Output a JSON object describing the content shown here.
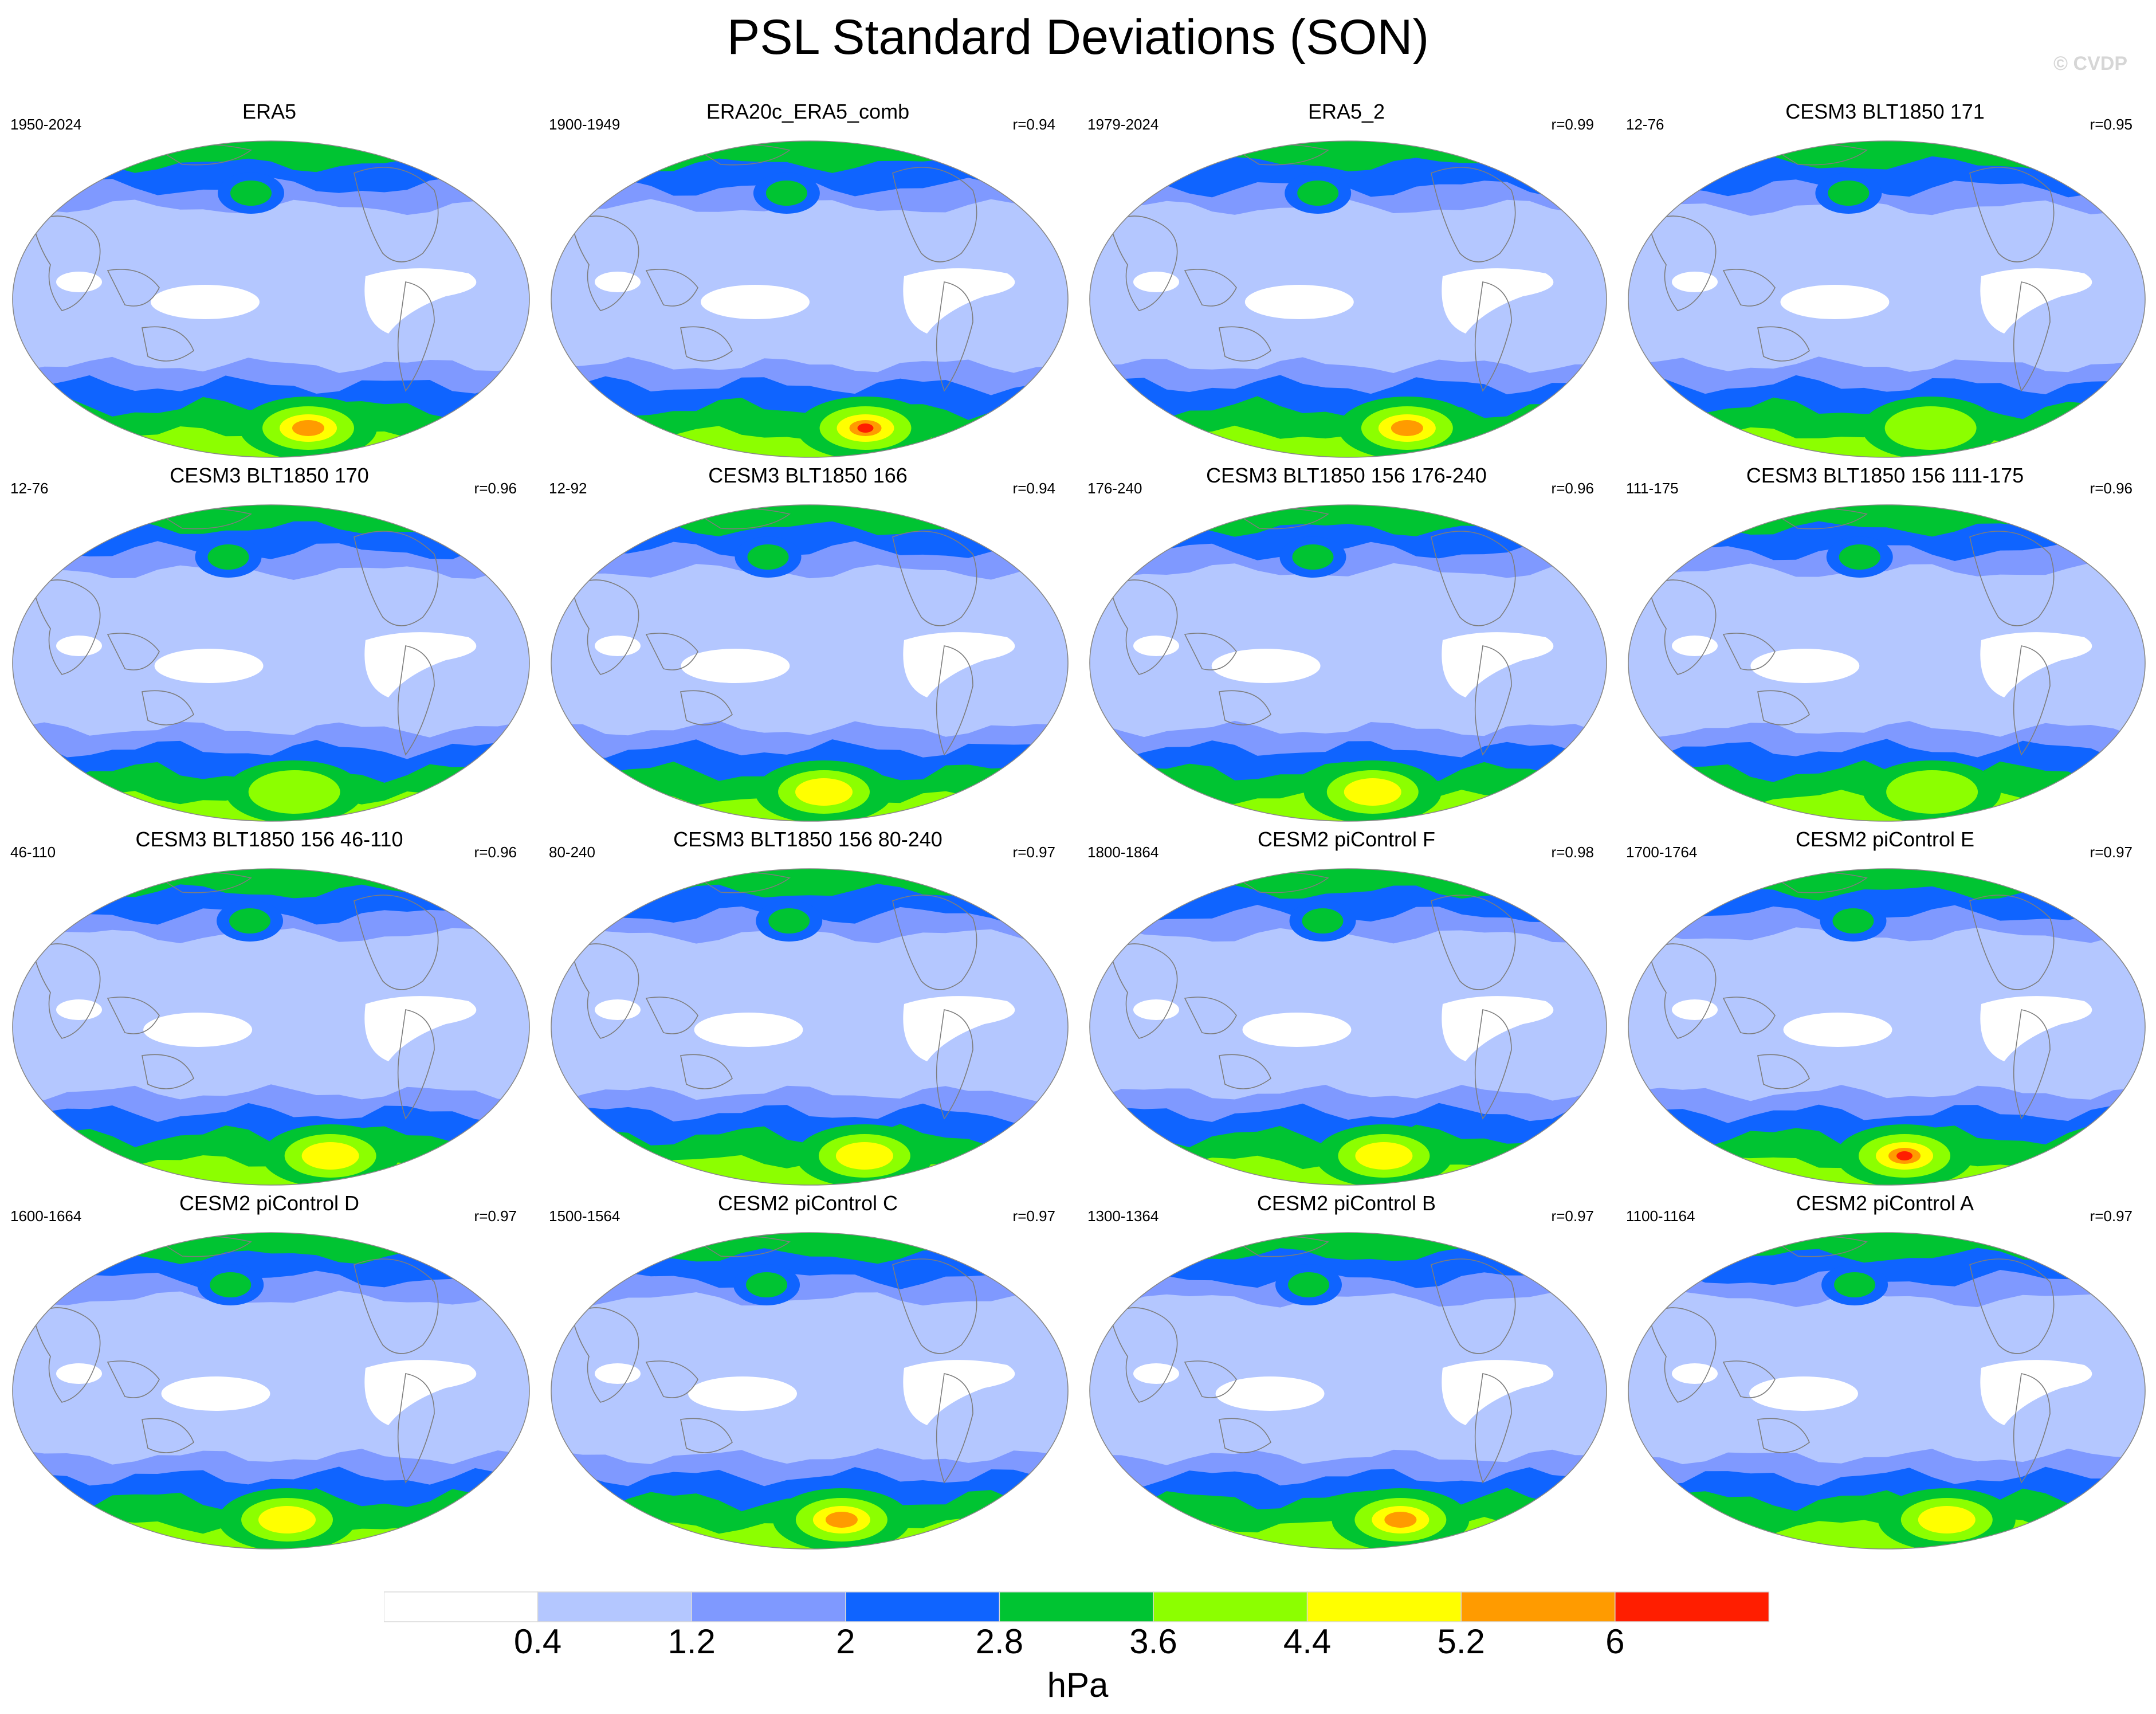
{
  "title": "PSL Standard Deviations (SON)",
  "watermark": "© CVDP",
  "colorbar": {
    "units": "hPa",
    "levels": [
      "0.4",
      "1.2",
      "2",
      "2.8",
      "3.6",
      "4.4",
      "5.2",
      "6"
    ],
    "colors": [
      "#ffffff",
      "#b4c7ff",
      "#7f99ff",
      "#0f64ff",
      "#00c432",
      "#8cff00",
      "#ffff00",
      "#ff9b00",
      "#ff1e00"
    ]
  },
  "panels": [
    {
      "title": "ERA5",
      "years": "1950-2024",
      "r": "",
      "peak": "orange"
    },
    {
      "title": "ERA20c_ERA5_comb",
      "years": "1900-1949",
      "r": "r=0.94",
      "peak": "red"
    },
    {
      "title": "ERA5_2",
      "years": "1979-2024",
      "r": "r=0.99",
      "peak": "orange"
    },
    {
      "title": "CESM3 BLT1850 171",
      "years": "12-76",
      "r": "r=0.95",
      "peak": "lime"
    },
    {
      "title": "CESM3 BLT1850 170",
      "years": "12-76",
      "r": "r=0.96",
      "peak": "lime"
    },
    {
      "title": "CESM3 BLT1850 166",
      "years": "12-92",
      "r": "r=0.94",
      "peak": "yellow"
    },
    {
      "title": "CESM3 BLT1850 156 176-240",
      "years": "176-240",
      "r": "r=0.96",
      "peak": "yellow"
    },
    {
      "title": "CESM3 BLT1850 156 111-175",
      "years": "111-175",
      "r": "r=0.96",
      "peak": "lime"
    },
    {
      "title": "CESM3 BLT1850 156 46-110",
      "years": "46-110",
      "r": "r=0.96",
      "peak": "yellow"
    },
    {
      "title": "CESM3 BLT1850 156 80-240",
      "years": "80-240",
      "r": "r=0.97",
      "peak": "yellow"
    },
    {
      "title": "CESM2 piControl F",
      "years": "1800-1864",
      "r": "r=0.98",
      "peak": "yellow"
    },
    {
      "title": "CESM2 piControl E",
      "years": "1700-1764",
      "r": "r=0.97",
      "peak": "red"
    },
    {
      "title": "CESM2 piControl D",
      "years": "1600-1664",
      "r": "r=0.97",
      "peak": "yellow"
    },
    {
      "title": "CESM2 piControl C",
      "years": "1500-1564",
      "r": "r=0.97",
      "peak": "orange"
    },
    {
      "title": "CESM2 piControl B",
      "years": "1300-1364",
      "r": "r=0.97",
      "peak": "orange"
    },
    {
      "title": "CESM2 piControl A",
      "years": "1100-1164",
      "r": "r=0.97",
      "peak": "yellow"
    }
  ]
}
